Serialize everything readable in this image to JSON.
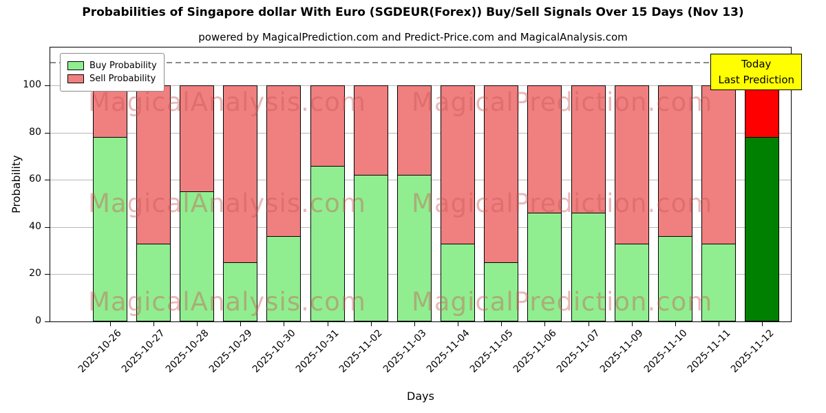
{
  "chart_data": {
    "type": "bar",
    "stacked": true,
    "title": "Probabilities of Singapore dollar With Euro (SGDEUR(Forex)) Buy/Sell Signals Over 15 Days (Nov 13)",
    "subtitle": "powered by MagicalPrediction.com and Predict-Price.com and MagicalAnalysis.com",
    "xlabel": "Days",
    "ylabel": "Probability",
    "ylim": [
      0,
      116
    ],
    "yticks": [
      0,
      20,
      40,
      60,
      80,
      100
    ],
    "dashed_line_y": 110,
    "grid": "horizontal",
    "legend_position": "upper-left",
    "categories": [
      "2025-10-26",
      "2025-10-27",
      "2025-10-28",
      "2025-10-29",
      "2025-10-30",
      "2025-10-31",
      "2025-11-02",
      "2025-11-03",
      "2025-11-04",
      "2025-11-05",
      "2025-11-06",
      "2025-11-07",
      "2025-11-09",
      "2025-11-10",
      "2025-11-11",
      "2025-11-12"
    ],
    "series": [
      {
        "name": "Buy Probability",
        "color": "#90EE90",
        "today_color": "#008000",
        "values": [
          78,
          33,
          55,
          25,
          36,
          66,
          62,
          62,
          33,
          25,
          46,
          46,
          33,
          36,
          33,
          78
        ]
      },
      {
        "name": "Sell Probability",
        "color": "#F08080",
        "today_color": "#FF0000",
        "values": [
          22,
          67,
          45,
          75,
          64,
          34,
          38,
          38,
          67,
          75,
          54,
          54,
          67,
          64,
          67,
          22
        ]
      }
    ],
    "today_index": 15,
    "annotation": {
      "lines": [
        "Today",
        "Last Prediction"
      ],
      "bg_color": "#FFFF00"
    },
    "watermarks": [
      "MagicalAnalysis.com",
      "MagicalPrediction.com"
    ]
  }
}
